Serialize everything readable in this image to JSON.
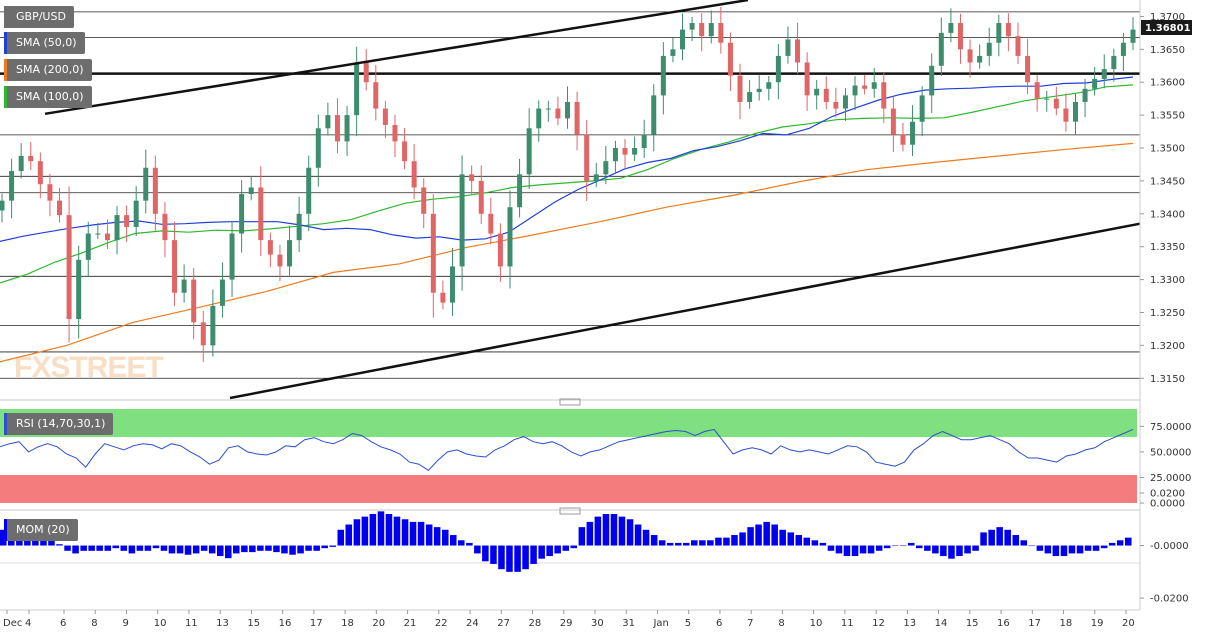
{
  "legend": {
    "symbol": "GBP/USD",
    "sma50": "SMA (50,0)",
    "sma200": "SMA (200,0)",
    "sma100": "SMA (100,0)",
    "rsi": "RSI (14,70,30,1)",
    "mom": "MOM (20)"
  },
  "watermark": "FXSTREET",
  "last_price": "1.36801",
  "colors": {
    "up": "#3d8c6e",
    "down": "#e06666",
    "sma50": "#1f3fd9",
    "sma100": "#2db82d",
    "sma200": "#f07b1e",
    "rsi_line": "#2b4fd0",
    "rsi_over": "#7ee07e",
    "rsi_under": "#f47c7c",
    "mom_bar": "#0000ee",
    "price_badge": "#1a1a1a"
  },
  "chart_data": [
    {
      "type": "candlestick",
      "title": "GBP/USD",
      "ylim": [
        1.312,
        1.3725
      ],
      "y_ticks": [
        "1.3700",
        "1.3650",
        "1.3600",
        "1.3550",
        "1.3500",
        "1.3450",
        "1.3400",
        "1.3350",
        "1.3300",
        "1.3250",
        "1.3200",
        "1.3150"
      ],
      "x_ticks": [
        "Dec",
        "4",
        "6",
        "8",
        "9",
        "10",
        "11",
        "13",
        "15",
        "16",
        "17",
        "18",
        "20",
        "21",
        "22",
        "24",
        "27",
        "28",
        "29",
        "30",
        "31",
        "Jan",
        "5",
        "6",
        "7",
        "8",
        "10",
        "11",
        "12",
        "13",
        "14",
        "15",
        "16",
        "17",
        "18",
        "19",
        "20"
      ],
      "close_series": [
        1.342,
        1.3465,
        1.3488,
        1.348,
        1.3445,
        1.342,
        1.3398,
        1.324,
        1.333,
        1.337,
        1.337,
        1.336,
        1.3398,
        1.338,
        1.342,
        1.347,
        1.34,
        1.336,
        1.328,
        1.33,
        1.3235,
        1.32,
        1.326,
        1.33,
        1.337,
        1.343,
        1.344,
        1.336,
        1.3338,
        1.332,
        1.336,
        1.34,
        1.347,
        1.353,
        1.355,
        1.351,
        1.355,
        1.363,
        1.36,
        1.356,
        1.3535,
        1.351,
        1.348,
        1.344,
        1.34,
        1.328,
        1.3265,
        1.332,
        1.346,
        1.345,
        1.34,
        1.337,
        1.332,
        1.341,
        1.346,
        1.353,
        1.356,
        1.356,
        1.3545,
        1.357,
        1.352,
        1.345,
        1.346,
        1.348,
        1.35,
        1.349,
        1.35,
        1.352,
        1.358,
        1.364,
        1.365,
        1.368,
        1.369,
        1.367,
        1.369,
        1.366,
        1.361,
        1.357,
        1.3585,
        1.359,
        1.36,
        1.364,
        1.3665,
        1.363,
        1.358,
        1.359,
        1.357,
        1.356,
        1.358,
        1.3595,
        1.359,
        1.36,
        1.356,
        1.352,
        1.3505,
        1.354,
        1.358,
        1.3625,
        1.3675,
        1.369,
        1.365,
        1.363,
        1.364,
        1.366,
        1.369,
        1.367,
        1.364,
        1.36,
        1.3575,
        1.3575,
        1.356,
        1.354,
        1.357,
        1.359,
        1.3605,
        1.362,
        1.364,
        1.366,
        1.368
      ],
      "sma50": [
        1.3358,
        1.3366,
        1.3372,
        1.3378,
        1.3383,
        1.3387,
        1.3389,
        1.3384,
        1.3385,
        1.3387,
        1.3388,
        1.3388,
        1.3388,
        1.3383,
        1.3376,
        1.3378,
        1.3376,
        1.3368,
        1.3363,
        1.3365,
        1.336,
        1.3362,
        1.3372,
        1.3395,
        1.3418,
        1.3437,
        1.3452,
        1.3468,
        1.3478,
        1.3484,
        1.3496,
        1.3502,
        1.3511,
        1.3522,
        1.352,
        1.353,
        1.3548,
        1.3561,
        1.3573,
        1.3582,
        1.3588,
        1.359,
        1.3591,
        1.3593,
        1.3594,
        1.3594,
        1.3598,
        1.3599,
        1.3604,
        1.3608
      ],
      "sma100": [
        1.3295,
        1.3308,
        1.3326,
        1.334,
        1.3356,
        1.337,
        1.3374,
        1.3372,
        1.3375,
        1.3374,
        1.3377,
        1.3381,
        1.3385,
        1.3391,
        1.3404,
        1.3416,
        1.3422,
        1.3426,
        1.3432,
        1.344,
        1.3444,
        1.3447,
        1.345,
        1.3454,
        1.3467,
        1.3484,
        1.3498,
        1.3509,
        1.3522,
        1.3532,
        1.3537,
        1.3543,
        1.3545,
        1.3546,
        1.3545,
        1.3546,
        1.3554,
        1.3563,
        1.3572,
        1.3578,
        1.3584,
        1.3593,
        1.3596
      ],
      "sma200": [
        1.3175,
        1.32,
        1.3235,
        1.3258,
        1.3282,
        1.3311,
        1.3324,
        1.3349,
        1.3368,
        1.3388,
        1.341,
        1.3428,
        1.3449,
        1.3467,
        1.3478,
        1.3488,
        1.3498,
        1.3507
      ]
    },
    {
      "type": "line",
      "title": "RSI (14,70,30,1)",
      "ylim": [
        0,
        92
      ],
      "y_ticks": [
        "75.0000",
        "50.0000",
        "25.0000",
        "0.0000"
      ],
      "overbought": 70,
      "oversold": 30,
      "values": [
        55,
        58,
        60,
        50,
        55,
        58,
        55,
        48,
        44,
        35,
        48,
        58,
        55,
        52,
        56,
        58,
        57,
        53,
        58,
        56,
        50,
        45,
        38,
        42,
        54,
        56,
        50,
        48,
        47,
        50,
        56,
        55,
        62,
        64,
        60,
        58,
        62,
        68,
        66,
        60,
        55,
        52,
        48,
        40,
        38,
        32,
        42,
        50,
        52,
        48,
        46,
        45,
        52,
        56,
        62,
        65,
        60,
        58,
        60,
        56,
        50,
        46,
        50,
        52,
        56,
        60,
        62,
        64,
        66,
        68,
        70,
        71,
        70,
        66,
        70,
        72,
        60,
        48,
        52,
        54,
        52,
        48,
        56,
        52,
        50,
        52,
        50,
        48,
        52,
        56,
        55,
        50,
        40,
        38,
        36,
        40,
        52,
        58,
        66,
        70,
        66,
        62,
        62,
        64,
        66,
        62,
        58,
        50,
        44,
        44,
        42,
        40,
        46,
        48,
        52,
        54,
        60,
        64,
        68,
        72
      ]
    },
    {
      "type": "bar",
      "title": "MOM (20)",
      "ylim": [
        -0.023,
        0.012
      ],
      "y_ticks": [
        "0.0200",
        "-0.0000",
        "-0.0200"
      ],
      "values": [
        0.006,
        0.005,
        0.005,
        0.004,
        0.004,
        0.002,
        0.002,
        0.0005,
        -0.002,
        -0.003,
        -0.002,
        -0.002,
        -0.002,
        -0.002,
        -0.001,
        -0.002,
        -0.003,
        -0.002,
        -0.002,
        -0.001,
        -0.002,
        -0.003,
        -0.003,
        -0.0035,
        -0.003,
        -0.002,
        -0.003,
        -0.004,
        -0.0048,
        -0.003,
        -0.0025,
        -0.0025,
        -0.002,
        -0.002,
        -0.0025,
        -0.003,
        -0.0035,
        -0.003,
        -0.002,
        -0.002,
        -0.001,
        -0.0005,
        0.006,
        0.008,
        0.01,
        0.011,
        0.012,
        0.013,
        0.012,
        0.011,
        0.01,
        0.009,
        0.009,
        0.008,
        0.007,
        0.006,
        0.004,
        0.002,
        0.001,
        -0.003,
        -0.006,
        -0.007,
        -0.009,
        -0.01,
        -0.01,
        -0.009,
        -0.007,
        -0.005,
        -0.004,
        -0.003,
        -0.002,
        -0.001,
        0.007,
        0.009,
        0.011,
        0.012,
        0.012,
        0.011,
        0.01,
        0.008,
        0.006,
        0.004,
        0.002,
        0.001,
        0.001,
        0.001,
        0.002,
        0.002,
        0.002,
        0.003,
        0.003,
        0.004,
        0.005,
        0.007,
        0.008,
        0.009,
        0.008,
        0.006,
        0.005,
        0.004,
        0.003,
        0.002,
        0.001,
        -0.002,
        -0.003,
        -0.004,
        -0.004,
        -0.003,
        -0.003,
        -0.002,
        -0.001,
        0,
        0,
        0.001,
        -0.001,
        -0.002,
        -0.003,
        -0.004,
        -0.005,
        -0.004,
        -0.003,
        -0.002,
        0.005,
        0.006,
        0.007,
        0.006,
        0.004,
        0.002,
        0,
        -0.002,
        -0.003,
        -0.004,
        -0.004,
        -0.003,
        -0.003,
        -0.002,
        -0.002,
        -0.001,
        0.001,
        0.002,
        0.003
      ]
    }
  ]
}
